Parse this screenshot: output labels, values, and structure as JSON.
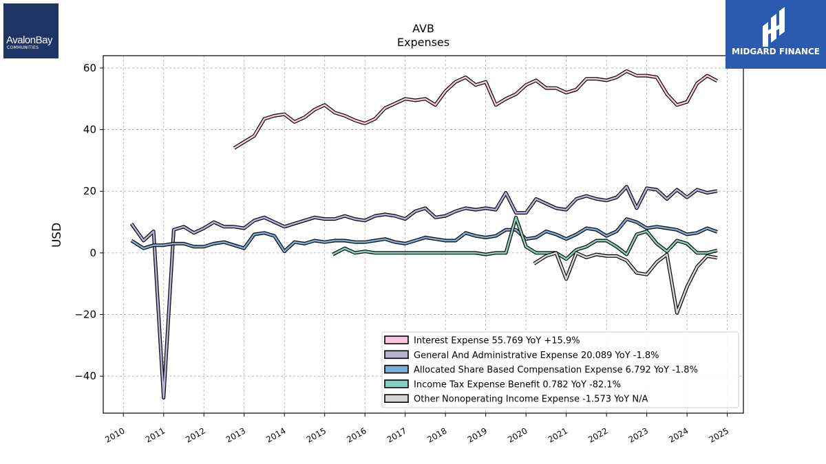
{
  "logos": {
    "left": {
      "line1": "AvalonBay",
      "line2": "COMMUNITIES"
    },
    "right": {
      "brand": "MIDGARD FINANCE"
    }
  },
  "chart_data": {
    "type": "line",
    "title": "AVB",
    "subtitle": "Expenses",
    "ylabel": "USD",
    "xlabel": "",
    "xlim": [
      2009.5,
      2025.4
    ],
    "ylim": [
      -52,
      64
    ],
    "xticks": [
      2010,
      2011,
      2012,
      2013,
      2014,
      2015,
      2016,
      2017,
      2018,
      2019,
      2020,
      2021,
      2022,
      2023,
      2024,
      2025
    ],
    "yticks": [
      -40,
      -20,
      0,
      20,
      40,
      60
    ],
    "grid": true,
    "legend_position": "bottom-right",
    "series": [
      {
        "name": "Interest Expense",
        "legend_label": "Interest Expense  55.769 YoY +15.9%",
        "color": "#f9c6de",
        "points": [
          [
            2012.75,
            34
          ],
          [
            2013.0,
            36
          ],
          [
            2013.25,
            38
          ],
          [
            2013.5,
            43.5
          ],
          [
            2013.75,
            44.5
          ],
          [
            2014.0,
            45
          ],
          [
            2014.25,
            42.5
          ],
          [
            2014.5,
            44
          ],
          [
            2014.75,
            46.5
          ],
          [
            2015.0,
            48
          ],
          [
            2015.25,
            45.5
          ],
          [
            2015.5,
            44.5
          ],
          [
            2015.75,
            43
          ],
          [
            2016.0,
            42
          ],
          [
            2016.25,
            43.5
          ],
          [
            2016.5,
            47
          ],
          [
            2016.75,
            48.5
          ],
          [
            2017.0,
            50
          ],
          [
            2017.25,
            49.5
          ],
          [
            2017.5,
            50
          ],
          [
            2017.75,
            48
          ],
          [
            2018.0,
            52.5
          ],
          [
            2018.25,
            55.5
          ],
          [
            2018.5,
            57
          ],
          [
            2018.75,
            54.5
          ],
          [
            2019.0,
            55.5
          ],
          [
            2019.25,
            48
          ],
          [
            2019.5,
            50
          ],
          [
            2019.75,
            51.5
          ],
          [
            2020.0,
            54.5
          ],
          [
            2020.25,
            56
          ],
          [
            2020.5,
            53.5
          ],
          [
            2020.75,
            53.5
          ],
          [
            2021.0,
            52
          ],
          [
            2021.25,
            53
          ],
          [
            2021.5,
            56.5
          ],
          [
            2021.75,
            56.5
          ],
          [
            2022.0,
            56
          ],
          [
            2022.25,
            57
          ],
          [
            2022.5,
            59
          ],
          [
            2022.75,
            57.5
          ],
          [
            2023.0,
            57.5
          ],
          [
            2023.25,
            57
          ],
          [
            2023.5,
            51.5
          ],
          [
            2023.75,
            48
          ],
          [
            2024.0,
            49
          ],
          [
            2024.25,
            55
          ],
          [
            2024.5,
            57.5
          ],
          [
            2024.75,
            55.8
          ]
        ]
      },
      {
        "name": "General And Administrative Expense",
        "legend_label": "General And Administrative Expense  20.089 YoY -1.8%",
        "color": "#b8b0d6",
        "points": [
          [
            2010.2,
            9.5
          ],
          [
            2010.5,
            4
          ],
          [
            2010.75,
            7
          ],
          [
            2011.0,
            -47
          ],
          [
            2011.25,
            7.5
          ],
          [
            2011.5,
            8.5
          ],
          [
            2011.75,
            6.5
          ],
          [
            2012.0,
            8
          ],
          [
            2012.25,
            10
          ],
          [
            2012.5,
            8.5
          ],
          [
            2012.75,
            8.5
          ],
          [
            2013.0,
            8
          ],
          [
            2013.25,
            10.5
          ],
          [
            2013.5,
            11.5
          ],
          [
            2013.75,
            10
          ],
          [
            2014.0,
            8.5
          ],
          [
            2014.25,
            9.5
          ],
          [
            2014.5,
            10.5
          ],
          [
            2014.75,
            11.5
          ],
          [
            2015.0,
            11
          ],
          [
            2015.25,
            11
          ],
          [
            2015.5,
            12
          ],
          [
            2015.75,
            11
          ],
          [
            2016.0,
            10.5
          ],
          [
            2016.25,
            12
          ],
          [
            2016.5,
            12.5
          ],
          [
            2016.75,
            12
          ],
          [
            2017.0,
            11
          ],
          [
            2017.25,
            13.5
          ],
          [
            2017.5,
            14.5
          ],
          [
            2017.75,
            11.5
          ],
          [
            2018.0,
            12
          ],
          [
            2018.25,
            13.5
          ],
          [
            2018.5,
            14.5
          ],
          [
            2018.75,
            14
          ],
          [
            2019.0,
            14.5
          ],
          [
            2019.25,
            14
          ],
          [
            2019.5,
            19.5
          ],
          [
            2019.75,
            13
          ],
          [
            2020.0,
            13
          ],
          [
            2020.25,
            17.5
          ],
          [
            2020.5,
            16
          ],
          [
            2020.75,
            14.5
          ],
          [
            2021.0,
            14
          ],
          [
            2021.25,
            17.5
          ],
          [
            2021.5,
            18.5
          ],
          [
            2021.75,
            17.5
          ],
          [
            2022.0,
            17
          ],
          [
            2022.25,
            18
          ],
          [
            2022.5,
            21.5
          ],
          [
            2022.75,
            14.5
          ],
          [
            2023.0,
            21
          ],
          [
            2023.25,
            20.5
          ],
          [
            2023.5,
            17.5
          ],
          [
            2023.75,
            20.5
          ],
          [
            2024.0,
            18
          ],
          [
            2024.25,
            20.5
          ],
          [
            2024.5,
            19.5
          ],
          [
            2024.75,
            20.1
          ]
        ]
      },
      {
        "name": "Allocated Share Based Compensation Expense",
        "legend_label": "Allocated Share Based Compensation Expense  6.792 YoY -1.8%",
        "color": "#7bacd4",
        "points": [
          [
            2010.2,
            4
          ],
          [
            2010.5,
            1.5
          ],
          [
            2010.75,
            2.5
          ],
          [
            2011.0,
            2.5
          ],
          [
            2011.25,
            3
          ],
          [
            2011.5,
            3
          ],
          [
            2011.75,
            2
          ],
          [
            2012.0,
            2
          ],
          [
            2012.25,
            3
          ],
          [
            2012.5,
            3.5
          ],
          [
            2012.75,
            2.5
          ],
          [
            2013.0,
            1.5
          ],
          [
            2013.25,
            6
          ],
          [
            2013.5,
            6.5
          ],
          [
            2013.75,
            5.5
          ],
          [
            2014.0,
            0.5
          ],
          [
            2014.25,
            3.5
          ],
          [
            2014.5,
            3
          ],
          [
            2014.75,
            4
          ],
          [
            2015.0,
            3.5
          ],
          [
            2015.25,
            4
          ],
          [
            2015.5,
            4
          ],
          [
            2015.75,
            3.5
          ],
          [
            2016.0,
            3.5
          ],
          [
            2016.25,
            4
          ],
          [
            2016.5,
            4.5
          ],
          [
            2016.75,
            3.5
          ],
          [
            2017.0,
            3
          ],
          [
            2017.25,
            4
          ],
          [
            2017.5,
            5
          ],
          [
            2017.75,
            4.5
          ],
          [
            2018.0,
            4
          ],
          [
            2018.25,
            4
          ],
          [
            2018.5,
            6.5
          ],
          [
            2018.75,
            5.5
          ],
          [
            2019.0,
            5
          ],
          [
            2019.25,
            5.5
          ],
          [
            2019.5,
            7.5
          ],
          [
            2019.75,
            7.5
          ],
          [
            2020.0,
            4.5
          ],
          [
            2020.25,
            5
          ],
          [
            2020.5,
            7
          ],
          [
            2020.75,
            6
          ],
          [
            2021.0,
            4.5
          ],
          [
            2021.25,
            6
          ],
          [
            2021.5,
            8
          ],
          [
            2021.75,
            7.5
          ],
          [
            2022.0,
            5.5
          ],
          [
            2022.25,
            7
          ],
          [
            2022.5,
            11
          ],
          [
            2022.75,
            10
          ],
          [
            2023.0,
            8
          ],
          [
            2023.25,
            8.5
          ],
          [
            2023.5,
            8
          ],
          [
            2023.75,
            7.5
          ],
          [
            2024.0,
            6
          ],
          [
            2024.25,
            6.5
          ],
          [
            2024.5,
            8
          ],
          [
            2024.75,
            6.8
          ]
        ]
      },
      {
        "name": "Income Tax Expense Benefit",
        "legend_label": "Income Tax Expense Benefit  0.782 YoY -82.1%",
        "color": "#86cfbf",
        "points": [
          [
            2015.2,
            -0.5
          ],
          [
            2015.5,
            1.5
          ],
          [
            2015.75,
            0
          ],
          [
            2016.0,
            0.5
          ],
          [
            2016.25,
            0
          ],
          [
            2016.5,
            0
          ],
          [
            2016.75,
            0
          ],
          [
            2017.0,
            0
          ],
          [
            2017.25,
            0
          ],
          [
            2017.5,
            0
          ],
          [
            2017.75,
            0
          ],
          [
            2018.0,
            0
          ],
          [
            2018.25,
            0
          ],
          [
            2018.5,
            0
          ],
          [
            2018.75,
            0
          ],
          [
            2019.0,
            -0.5
          ],
          [
            2019.25,
            0
          ],
          [
            2019.5,
            0
          ],
          [
            2019.75,
            11.5
          ],
          [
            2020.0,
            2
          ],
          [
            2020.25,
            0
          ],
          [
            2020.5,
            0
          ],
          [
            2020.75,
            0
          ],
          [
            2021.0,
            -2
          ],
          [
            2021.25,
            1
          ],
          [
            2021.5,
            2
          ],
          [
            2021.75,
            4
          ],
          [
            2022.0,
            4
          ],
          [
            2022.25,
            2
          ],
          [
            2022.5,
            -0.5
          ],
          [
            2022.75,
            6
          ],
          [
            2023.0,
            7
          ],
          [
            2023.25,
            3
          ],
          [
            2023.5,
            0.5
          ],
          [
            2023.75,
            4
          ],
          [
            2024.0,
            3
          ],
          [
            2024.25,
            0
          ],
          [
            2024.5,
            0
          ],
          [
            2024.75,
            0.8
          ]
        ]
      },
      {
        "name": "Other Nonoperating Income Expense",
        "legend_label": "Other Nonoperating Income Expense  -1.573 YoY N/A",
        "color": "#d6d6d6",
        "points": [
          [
            2020.2,
            -3.5
          ],
          [
            2020.5,
            -1
          ],
          [
            2020.75,
            0
          ],
          [
            2021.0,
            -8.5
          ],
          [
            2021.25,
            0
          ],
          [
            2021.5,
            -1.5
          ],
          [
            2021.75,
            -0.5
          ],
          [
            2022.0,
            -1
          ],
          [
            2022.25,
            -1
          ],
          [
            2022.5,
            -2.5
          ],
          [
            2022.75,
            -6.5
          ],
          [
            2023.0,
            -7
          ],
          [
            2023.25,
            -3
          ],
          [
            2023.5,
            -0.5
          ],
          [
            2023.75,
            -19.5
          ],
          [
            2024.0,
            -11
          ],
          [
            2024.25,
            -4.5
          ],
          [
            2024.5,
            -1
          ],
          [
            2024.75,
            -1.6
          ]
        ]
      }
    ]
  }
}
